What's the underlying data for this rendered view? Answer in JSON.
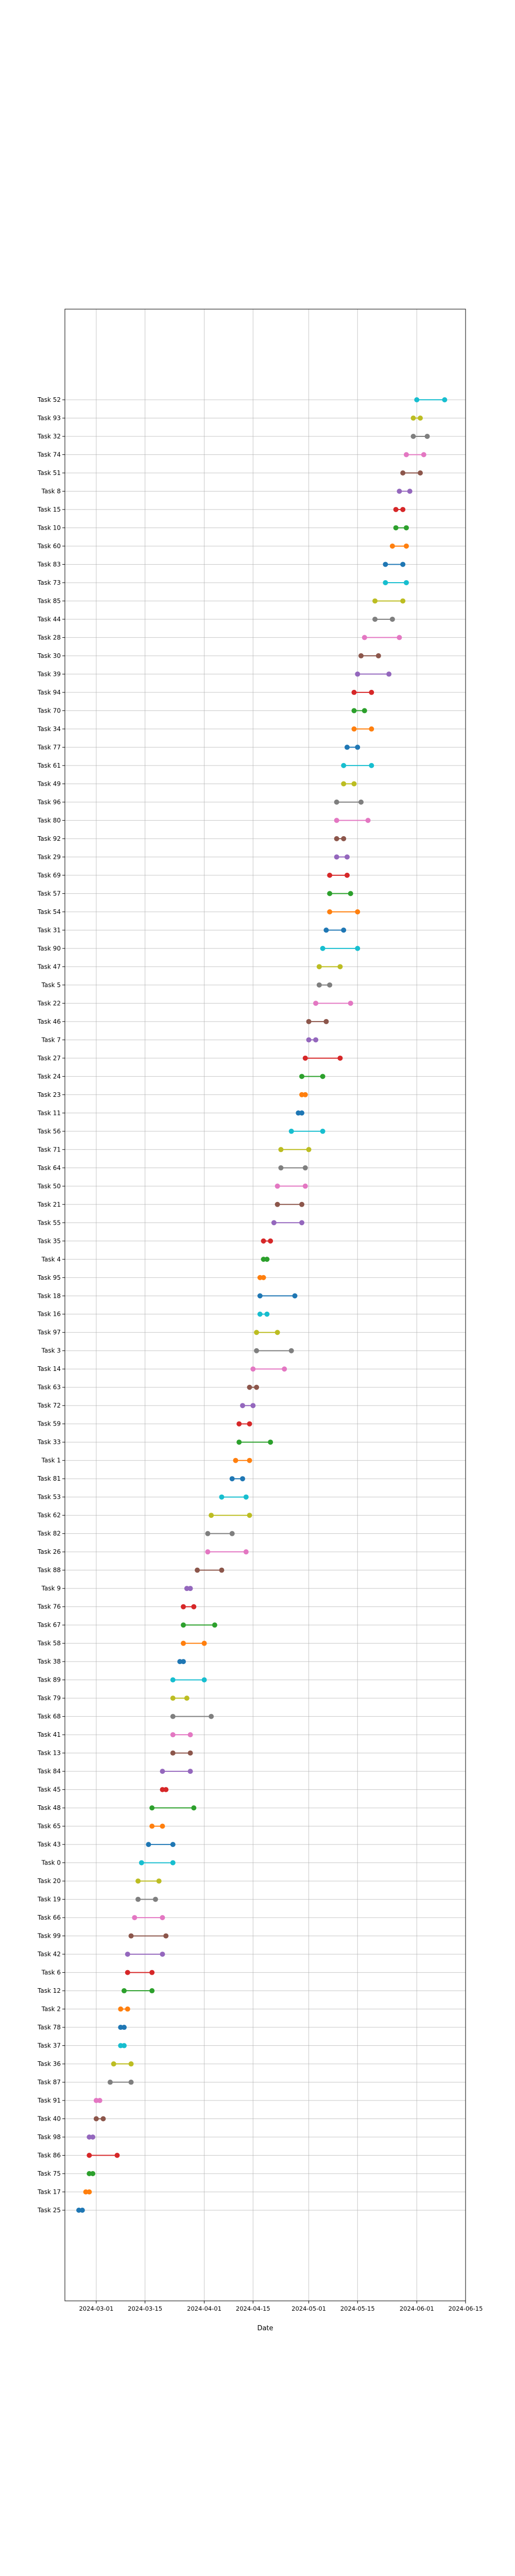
{
  "chart_data": {
    "type": "dumbbell",
    "title": "",
    "xlabel": "Date",
    "ylabel": "",
    "grid": true,
    "x_ticks": [
      "2024-03-01",
      "2024-03-15",
      "2024-04-01",
      "2024-04-15",
      "2024-05-01",
      "2024-05-15",
      "2024-06-01",
      "2024-06-15"
    ],
    "xlim": [
      "2024-02-21",
      "2024-06-15"
    ],
    "tasks": [
      {
        "name": "Task 52",
        "start": "2024-06-01",
        "end": "2024-06-09",
        "color": "#17becf"
      },
      {
        "name": "Task 93",
        "start": "2024-05-31",
        "end": "2024-06-02",
        "color": "#bcbd22"
      },
      {
        "name": "Task 32",
        "start": "2024-05-31",
        "end": "2024-06-04",
        "color": "#7f7f7f"
      },
      {
        "name": "Task 74",
        "start": "2024-05-29",
        "end": "2024-06-03",
        "color": "#e377c2"
      },
      {
        "name": "Task 51",
        "start": "2024-05-28",
        "end": "2024-06-02",
        "color": "#8c564b"
      },
      {
        "name": "Task 8",
        "start": "2024-05-27",
        "end": "2024-05-30",
        "color": "#9467bd"
      },
      {
        "name": "Task 15",
        "start": "2024-05-26",
        "end": "2024-05-28",
        "color": "#d62728"
      },
      {
        "name": "Task 10",
        "start": "2024-05-26",
        "end": "2024-05-29",
        "color": "#2ca02c"
      },
      {
        "name": "Task 60",
        "start": "2024-05-25",
        "end": "2024-05-29",
        "color": "#ff7f0e"
      },
      {
        "name": "Task 83",
        "start": "2024-05-23",
        "end": "2024-05-28",
        "color": "#1f77b4"
      },
      {
        "name": "Task 73",
        "start": "2024-05-23",
        "end": "2024-05-29",
        "color": "#17becf"
      },
      {
        "name": "Task 85",
        "start": "2024-05-20",
        "end": "2024-05-28",
        "color": "#bcbd22"
      },
      {
        "name": "Task 44",
        "start": "2024-05-20",
        "end": "2024-05-25",
        "color": "#7f7f7f"
      },
      {
        "name": "Task 28",
        "start": "2024-05-17",
        "end": "2024-05-27",
        "color": "#e377c2"
      },
      {
        "name": "Task 30",
        "start": "2024-05-16",
        "end": "2024-05-21",
        "color": "#8c564b"
      },
      {
        "name": "Task 39",
        "start": "2024-05-15",
        "end": "2024-05-24",
        "color": "#9467bd"
      },
      {
        "name": "Task 94",
        "start": "2024-05-14",
        "end": "2024-05-19",
        "color": "#d62728"
      },
      {
        "name": "Task 70",
        "start": "2024-05-14",
        "end": "2024-05-17",
        "color": "#2ca02c"
      },
      {
        "name": "Task 34",
        "start": "2024-05-14",
        "end": "2024-05-19",
        "color": "#ff7f0e"
      },
      {
        "name": "Task 77",
        "start": "2024-05-12",
        "end": "2024-05-15",
        "color": "#1f77b4"
      },
      {
        "name": "Task 61",
        "start": "2024-05-11",
        "end": "2024-05-19",
        "color": "#17becf"
      },
      {
        "name": "Task 49",
        "start": "2024-05-11",
        "end": "2024-05-14",
        "color": "#bcbd22"
      },
      {
        "name": "Task 96",
        "start": "2024-05-09",
        "end": "2024-05-16",
        "color": "#7f7f7f"
      },
      {
        "name": "Task 80",
        "start": "2024-05-09",
        "end": "2024-05-18",
        "color": "#e377c2"
      },
      {
        "name": "Task 92",
        "start": "2024-05-09",
        "end": "2024-05-11",
        "color": "#8c564b"
      },
      {
        "name": "Task 29",
        "start": "2024-05-09",
        "end": "2024-05-12",
        "color": "#9467bd"
      },
      {
        "name": "Task 69",
        "start": "2024-05-07",
        "end": "2024-05-12",
        "color": "#d62728"
      },
      {
        "name": "Task 57",
        "start": "2024-05-07",
        "end": "2024-05-13",
        "color": "#2ca02c"
      },
      {
        "name": "Task 54",
        "start": "2024-05-07",
        "end": "2024-05-15",
        "color": "#ff7f0e"
      },
      {
        "name": "Task 31",
        "start": "2024-05-06",
        "end": "2024-05-11",
        "color": "#1f77b4"
      },
      {
        "name": "Task 90",
        "start": "2024-05-05",
        "end": "2024-05-15",
        "color": "#17becf"
      },
      {
        "name": "Task 47",
        "start": "2024-05-04",
        "end": "2024-05-10",
        "color": "#bcbd22"
      },
      {
        "name": "Task 5",
        "start": "2024-05-04",
        "end": "2024-05-07",
        "color": "#7f7f7f"
      },
      {
        "name": "Task 22",
        "start": "2024-05-03",
        "end": "2024-05-13",
        "color": "#e377c2"
      },
      {
        "name": "Task 46",
        "start": "2024-05-01",
        "end": "2024-05-06",
        "color": "#8c564b"
      },
      {
        "name": "Task 7",
        "start": "2024-05-01",
        "end": "2024-05-03",
        "color": "#9467bd"
      },
      {
        "name": "Task 27",
        "start": "2024-04-30",
        "end": "2024-05-10",
        "color": "#d62728"
      },
      {
        "name": "Task 24",
        "start": "2024-04-29",
        "end": "2024-05-05",
        "color": "#2ca02c"
      },
      {
        "name": "Task 23",
        "start": "2024-04-29",
        "end": "2024-04-30",
        "color": "#ff7f0e"
      },
      {
        "name": "Task 11",
        "start": "2024-04-28",
        "end": "2024-04-29",
        "color": "#1f77b4"
      },
      {
        "name": "Task 56",
        "start": "2024-04-26",
        "end": "2024-05-05",
        "color": "#17becf"
      },
      {
        "name": "Task 71",
        "start": "2024-04-23",
        "end": "2024-05-01",
        "color": "#bcbd22"
      },
      {
        "name": "Task 64",
        "start": "2024-04-23",
        "end": "2024-04-30",
        "color": "#7f7f7f"
      },
      {
        "name": "Task 50",
        "start": "2024-04-22",
        "end": "2024-04-30",
        "color": "#e377c2"
      },
      {
        "name": "Task 21",
        "start": "2024-04-22",
        "end": "2024-04-29",
        "color": "#8c564b"
      },
      {
        "name": "Task 55",
        "start": "2024-04-21",
        "end": "2024-04-29",
        "color": "#9467bd"
      },
      {
        "name": "Task 35",
        "start": "2024-04-18",
        "end": "2024-04-20",
        "color": "#d62728"
      },
      {
        "name": "Task 4",
        "start": "2024-04-18",
        "end": "2024-04-19",
        "color": "#2ca02c"
      },
      {
        "name": "Task 95",
        "start": "2024-04-17",
        "end": "2024-04-18",
        "color": "#ff7f0e"
      },
      {
        "name": "Task 18",
        "start": "2024-04-17",
        "end": "2024-04-27",
        "color": "#1f77b4"
      },
      {
        "name": "Task 16",
        "start": "2024-04-17",
        "end": "2024-04-19",
        "color": "#17becf"
      },
      {
        "name": "Task 97",
        "start": "2024-04-16",
        "end": "2024-04-22",
        "color": "#bcbd22"
      },
      {
        "name": "Task 3",
        "start": "2024-04-16",
        "end": "2024-04-26",
        "color": "#7f7f7f"
      },
      {
        "name": "Task 14",
        "start": "2024-04-15",
        "end": "2024-04-24",
        "color": "#e377c2"
      },
      {
        "name": "Task 63",
        "start": "2024-04-14",
        "end": "2024-04-16",
        "color": "#8c564b"
      },
      {
        "name": "Task 72",
        "start": "2024-04-12",
        "end": "2024-04-15",
        "color": "#9467bd"
      },
      {
        "name": "Task 59",
        "start": "2024-04-11",
        "end": "2024-04-14",
        "color": "#d62728"
      },
      {
        "name": "Task 33",
        "start": "2024-04-11",
        "end": "2024-04-20",
        "color": "#2ca02c"
      },
      {
        "name": "Task 1",
        "start": "2024-04-10",
        "end": "2024-04-14",
        "color": "#ff7f0e"
      },
      {
        "name": "Task 81",
        "start": "2024-04-09",
        "end": "2024-04-12",
        "color": "#1f77b4"
      },
      {
        "name": "Task 53",
        "start": "2024-04-06",
        "end": "2024-04-13",
        "color": "#17becf"
      },
      {
        "name": "Task 62",
        "start": "2024-04-03",
        "end": "2024-04-14",
        "color": "#bcbd22"
      },
      {
        "name": "Task 82",
        "start": "2024-04-02",
        "end": "2024-04-09",
        "color": "#7f7f7f"
      },
      {
        "name": "Task 26",
        "start": "2024-04-02",
        "end": "2024-04-13",
        "color": "#e377c2"
      },
      {
        "name": "Task 88",
        "start": "2024-03-30",
        "end": "2024-04-06",
        "color": "#8c564b"
      },
      {
        "name": "Task 9",
        "start": "2024-03-27",
        "end": "2024-03-28",
        "color": "#9467bd"
      },
      {
        "name": "Task 76",
        "start": "2024-03-26",
        "end": "2024-03-29",
        "color": "#d62728"
      },
      {
        "name": "Task 67",
        "start": "2024-03-26",
        "end": "2024-04-04",
        "color": "#2ca02c"
      },
      {
        "name": "Task 58",
        "start": "2024-03-26",
        "end": "2024-04-01",
        "color": "#ff7f0e"
      },
      {
        "name": "Task 38",
        "start": "2024-03-25",
        "end": "2024-03-26",
        "color": "#1f77b4"
      },
      {
        "name": "Task 89",
        "start": "2024-03-23",
        "end": "2024-04-01",
        "color": "#17becf"
      },
      {
        "name": "Task 79",
        "start": "2024-03-23",
        "end": "2024-03-27",
        "color": "#bcbd22"
      },
      {
        "name": "Task 68",
        "start": "2024-03-23",
        "end": "2024-04-03",
        "color": "#7f7f7f"
      },
      {
        "name": "Task 41",
        "start": "2024-03-23",
        "end": "2024-03-28",
        "color": "#e377c2"
      },
      {
        "name": "Task 13",
        "start": "2024-03-23",
        "end": "2024-03-28",
        "color": "#8c564b"
      },
      {
        "name": "Task 84",
        "start": "2024-03-20",
        "end": "2024-03-28",
        "color": "#9467bd"
      },
      {
        "name": "Task 45",
        "start": "2024-03-20",
        "end": "2024-03-21",
        "color": "#d62728"
      },
      {
        "name": "Task 48",
        "start": "2024-03-17",
        "end": "2024-03-29",
        "color": "#2ca02c"
      },
      {
        "name": "Task 65",
        "start": "2024-03-17",
        "end": "2024-03-20",
        "color": "#ff7f0e"
      },
      {
        "name": "Task 43",
        "start": "2024-03-16",
        "end": "2024-03-23",
        "color": "#1f77b4"
      },
      {
        "name": "Task 0",
        "start": "2024-03-14",
        "end": "2024-03-23",
        "color": "#17becf"
      },
      {
        "name": "Task 20",
        "start": "2024-03-13",
        "end": "2024-03-19",
        "color": "#bcbd22"
      },
      {
        "name": "Task 19",
        "start": "2024-03-13",
        "end": "2024-03-18",
        "color": "#7f7f7f"
      },
      {
        "name": "Task 66",
        "start": "2024-03-12",
        "end": "2024-03-20",
        "color": "#e377c2"
      },
      {
        "name": "Task 99",
        "start": "2024-03-11",
        "end": "2024-03-21",
        "color": "#8c564b"
      },
      {
        "name": "Task 42",
        "start": "2024-03-10",
        "end": "2024-03-20",
        "color": "#9467bd"
      },
      {
        "name": "Task 6",
        "start": "2024-03-10",
        "end": "2024-03-17",
        "color": "#d62728"
      },
      {
        "name": "Task 12",
        "start": "2024-03-09",
        "end": "2024-03-17",
        "color": "#2ca02c"
      },
      {
        "name": "Task 2",
        "start": "2024-03-08",
        "end": "2024-03-10",
        "color": "#ff7f0e"
      },
      {
        "name": "Task 78",
        "start": "2024-03-08",
        "end": "2024-03-09",
        "color": "#1f77b4"
      },
      {
        "name": "Task 37",
        "start": "2024-03-08",
        "end": "2024-03-09",
        "color": "#17becf"
      },
      {
        "name": "Task 36",
        "start": "2024-03-06",
        "end": "2024-03-11",
        "color": "#bcbd22"
      },
      {
        "name": "Task 87",
        "start": "2024-03-05",
        "end": "2024-03-11",
        "color": "#7f7f7f"
      },
      {
        "name": "Task 91",
        "start": "2024-03-01",
        "end": "2024-03-02",
        "color": "#e377c2"
      },
      {
        "name": "Task 40",
        "start": "2024-03-01",
        "end": "2024-03-03",
        "color": "#8c564b"
      },
      {
        "name": "Task 98",
        "start": "2024-02-28",
        "end": "2024-02-29",
        "color": "#9467bd"
      },
      {
        "name": "Task 86",
        "start": "2024-02-28",
        "end": "2024-03-07",
        "color": "#d62728"
      },
      {
        "name": "Task 75",
        "start": "2024-02-28",
        "end": "2024-02-29",
        "color": "#2ca02c"
      },
      {
        "name": "Task 17",
        "start": "2024-02-27",
        "end": "2024-02-28",
        "color": "#ff7f0e"
      },
      {
        "name": "Task 25",
        "start": "2024-02-25",
        "end": "2024-02-26",
        "color": "#1f77b4"
      }
    ]
  }
}
